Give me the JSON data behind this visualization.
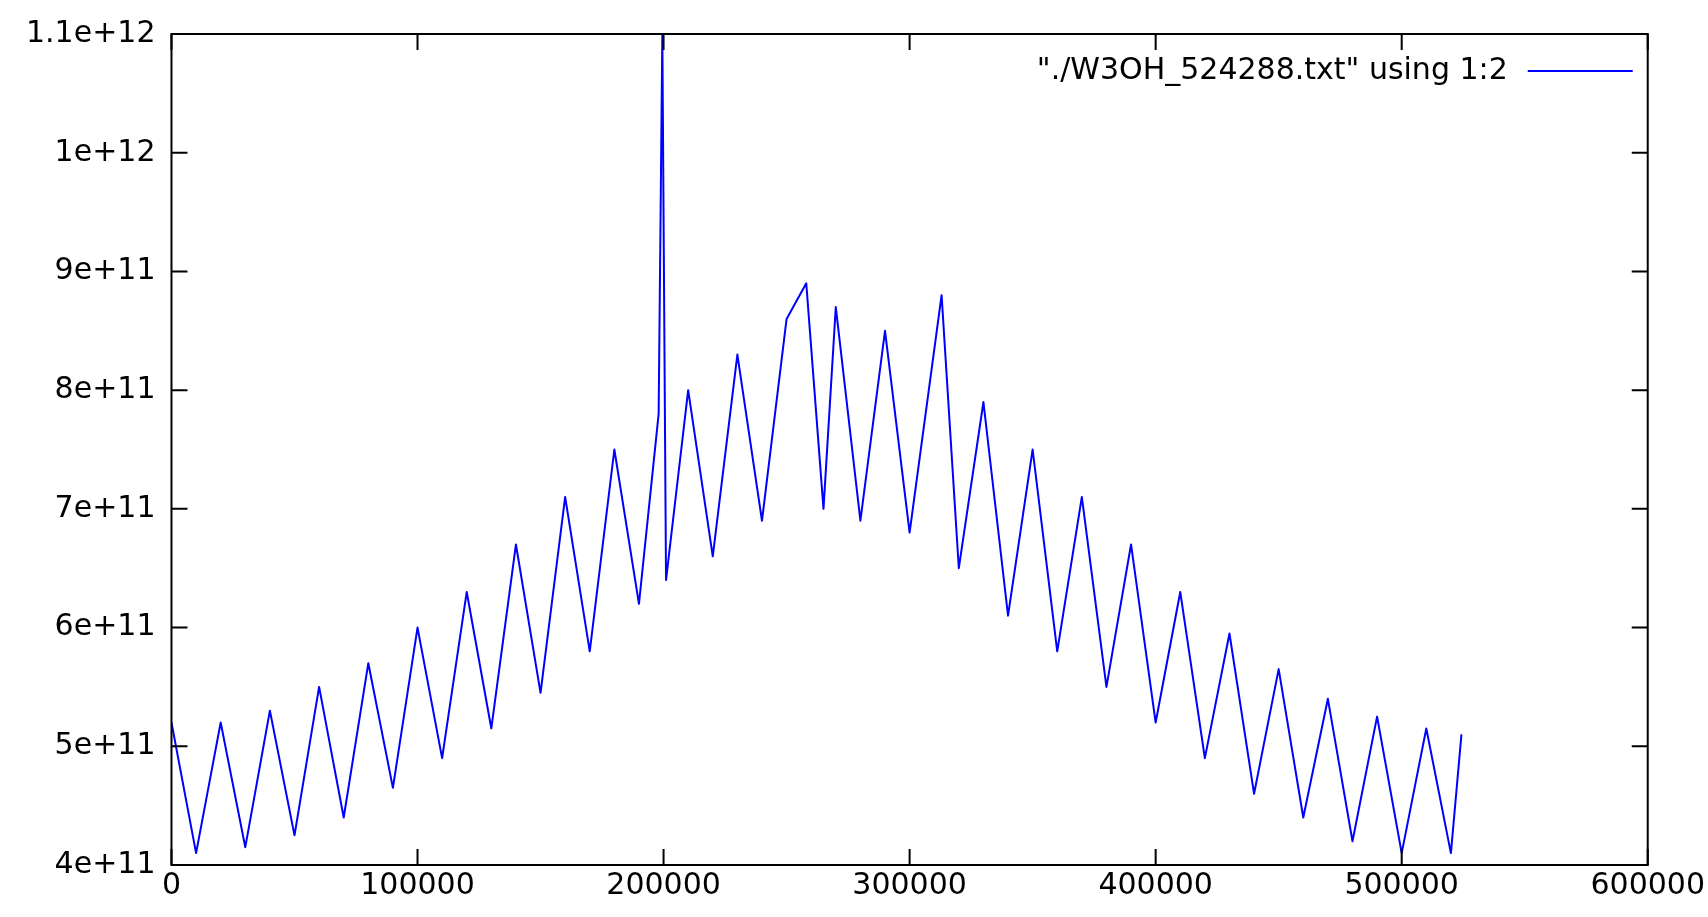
{
  "chart_data": {
    "type": "line",
    "x": [
      0,
      10000,
      20000,
      30000,
      40000,
      50000,
      60000,
      70000,
      80000,
      90000,
      100000,
      110000,
      120000,
      130000,
      140000,
      150000,
      160000,
      170000,
      180000,
      190000,
      198000,
      199500,
      201000,
      210000,
      220000,
      230000,
      240000,
      250000,
      258000,
      265000,
      270000,
      280000,
      290000,
      300000,
      313000,
      320000,
      330000,
      340000,
      350000,
      360000,
      370000,
      380000,
      390000,
      400000,
      410000,
      420000,
      430000,
      440000,
      450000,
      460000,
      470000,
      480000,
      490000,
      500000,
      510000,
      520000,
      524288
    ],
    "series": [
      {
        "name": "\"./W3OH_524288.txt\" using 1:2",
        "color": "#0000ff",
        "values": [
          520000000000.0,
          410000000000.0,
          520000000000.0,
          415000000000.0,
          530000000000.0,
          425000000000.0,
          550000000000.0,
          440000000000.0,
          570000000000.0,
          465000000000.0,
          600000000000.0,
          490000000000.0,
          630000000000.0,
          515000000000.0,
          670000000000.0,
          545000000000.0,
          710000000000.0,
          580000000000.0,
          750000000000.0,
          620000000000.0,
          780000000000.0,
          1100000000000.0,
          640000000000.0,
          800000000000.0,
          660000000000.0,
          830000000000.0,
          690000000000.0,
          860000000000.0,
          890000000000.0,
          700000000000.0,
          870000000000.0,
          690000000000.0,
          850000000000.0,
          680000000000.0,
          880000000000.0,
          650000000000.0,
          790000000000.0,
          610000000000.0,
          750000000000.0,
          580000000000.0,
          710000000000.0,
          550000000000.0,
          670000000000.0,
          520000000000.0,
          630000000000.0,
          490000000000.0,
          595000000000.0,
          460000000000.0,
          565000000000.0,
          440000000000.0,
          540000000000.0,
          420000000000.0,
          525000000000.0,
          410000000000.0,
          515000000000.0,
          410000000000.0,
          510000000000.0
        ]
      }
    ],
    "xlim": [
      0,
      600000
    ],
    "xticks": [
      0,
      100000,
      200000,
      300000,
      400000,
      500000,
      600000
    ],
    "ylim": [
      400000000000.0,
      1100000000000.0
    ],
    "yticks": [
      {
        "value": 400000000000.0,
        "label": "4e+11"
      },
      {
        "value": 500000000000.0,
        "label": "5e+11"
      },
      {
        "value": 600000000000.0,
        "label": "6e+11"
      },
      {
        "value": 700000000000.0,
        "label": "7e+11"
      },
      {
        "value": 800000000000.0,
        "label": "8e+11"
      },
      {
        "value": 900000000000.0,
        "label": "9e+11"
      },
      {
        "value": 1000000000000.0,
        "label": "1e+12"
      },
      {
        "value": 1100000000000.0,
        "label": "1.1e+12"
      }
    ],
    "grid": false,
    "legend": "top right",
    "marker": "none",
    "line_style": "solid"
  }
}
